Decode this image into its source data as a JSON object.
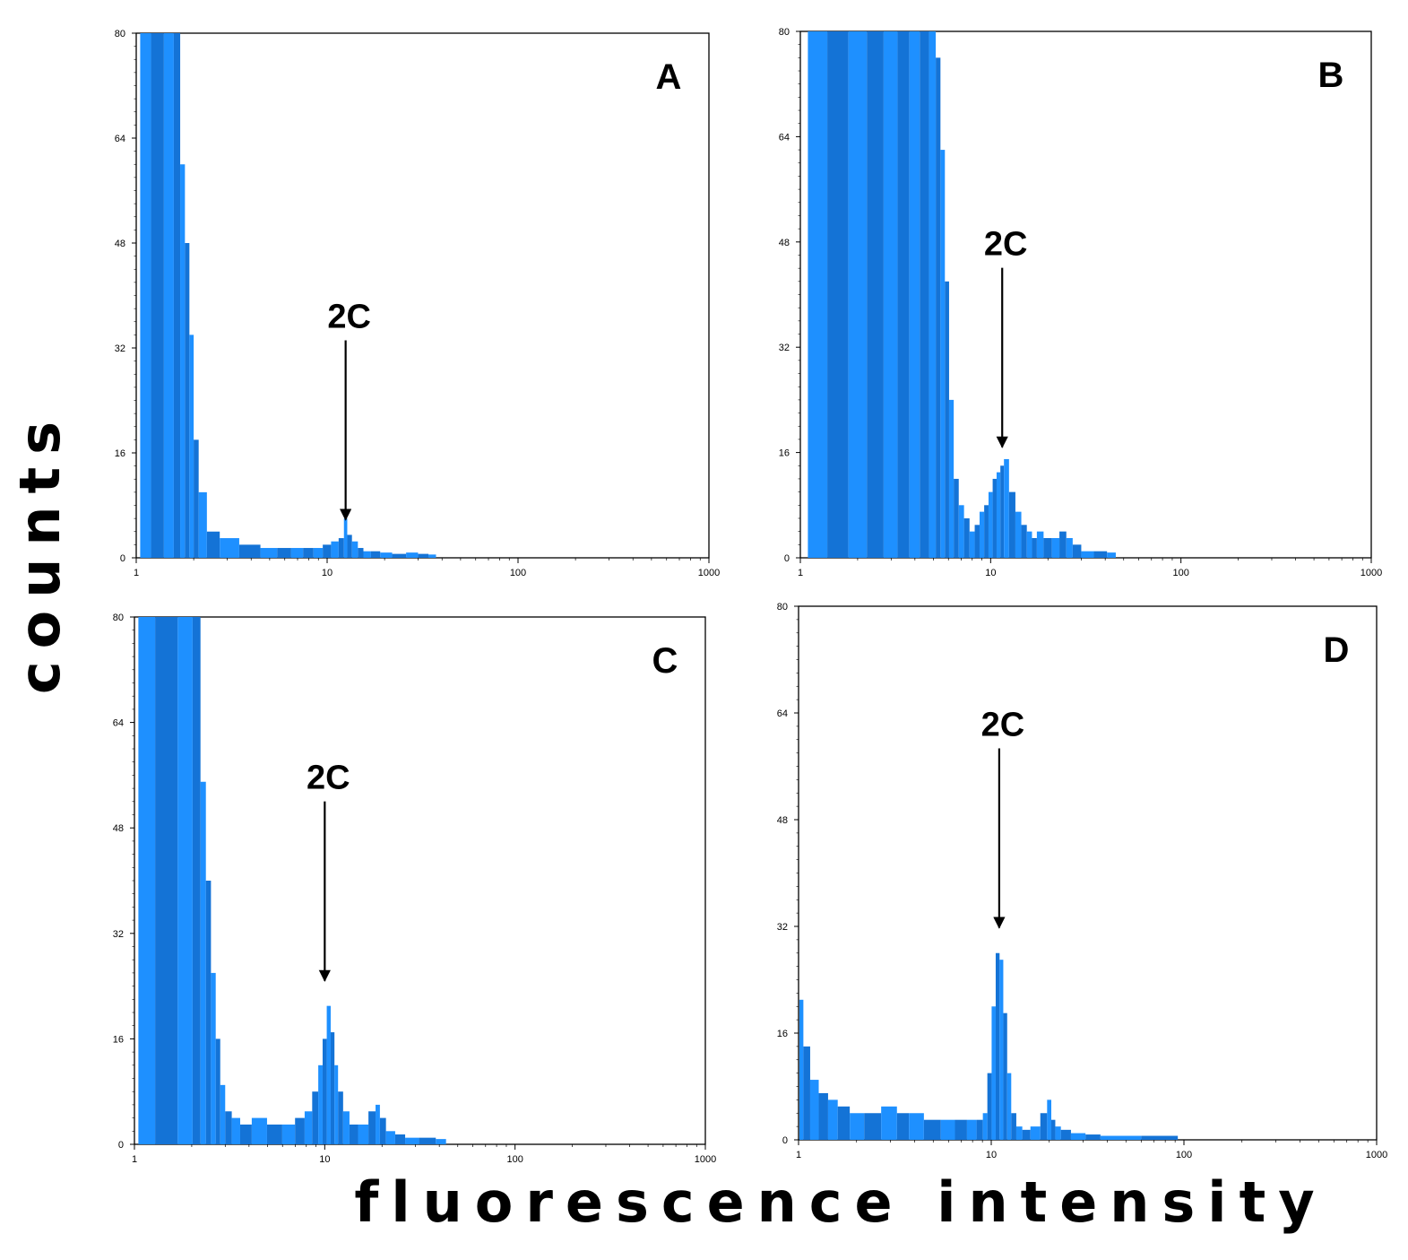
{
  "figure": {
    "ylabel": "counts",
    "xlabel": "fluorescence intensity",
    "bar_color": "#1e90ff",
    "bar_color_dark": "#1473d6"
  },
  "chart_data": [
    {
      "type": "bar",
      "panel_label": "A",
      "x_scale": "log",
      "xlim": [
        1,
        1000
      ],
      "ylim": [
        0,
        80
      ],
      "x_ticks": [
        "1",
        "10",
        "100",
        "1000"
      ],
      "y_ticks": [
        "0",
        "16",
        "32",
        "48",
        "64",
        "80"
      ],
      "annotation": {
        "text": "2C",
        "x": 12.5,
        "y": 5
      },
      "x": [
        1.1,
        1.3,
        1.5,
        1.65,
        1.75,
        1.85,
        1.95,
        2.05,
        2.2,
        2.5,
        3,
        4,
        5,
        6,
        7,
        8,
        9,
        10,
        11,
        12,
        12.5,
        13,
        14,
        15,
        16,
        18,
        20,
        24,
        28,
        32,
        36
      ],
      "values": [
        80,
        80,
        80,
        80,
        60,
        48,
        34,
        18,
        10,
        4,
        3,
        2,
        1.5,
        1.5,
        1.5,
        1.5,
        1.5,
        2,
        2.5,
        3,
        6,
        3.5,
        2.5,
        1.5,
        1,
        1,
        0.8,
        0.6,
        0.8,
        0.6,
        0.5
      ]
    },
    {
      "type": "bar",
      "panel_label": "B",
      "x_scale": "log",
      "xlim": [
        1,
        1000
      ],
      "ylim": [
        0,
        80
      ],
      "x_ticks": [
        "1",
        "10",
        "100",
        "1000"
      ],
      "y_ticks": [
        "0",
        "16",
        "32",
        "48",
        "64",
        "80"
      ],
      "annotation": {
        "text": "2C",
        "x": 11.5,
        "y": 16
      },
      "x": [
        1.2,
        1.6,
        2,
        2.5,
        3,
        3.5,
        4,
        4.5,
        5,
        5.3,
        5.6,
        5.9,
        6.2,
        6.6,
        7,
        7.5,
        8,
        8.5,
        9,
        9.5,
        10,
        10.5,
        11,
        11.5,
        12,
        13,
        14,
        15,
        16,
        17,
        18,
        20,
        22,
        24,
        26,
        28,
        32,
        38,
        44
      ],
      "values": [
        80,
        80,
        80,
        80,
        80,
        80,
        80,
        80,
        80,
        76,
        62,
        42,
        24,
        12,
        8,
        6,
        4,
        5,
        7,
        8,
        10,
        12,
        13,
        14,
        15,
        10,
        7,
        5,
        4,
        3,
        4,
        3,
        3,
        4,
        3,
        2,
        1,
        1,
        0.8
      ]
    },
    {
      "type": "bar",
      "panel_label": "C",
      "x_scale": "log",
      "xlim": [
        1,
        1000
      ],
      "ylim": [
        0,
        80
      ],
      "x_ticks": [
        "1",
        "10",
        "100",
        "1000"
      ],
      "y_ticks": [
        "0",
        "16",
        "32",
        "48",
        "64",
        "80"
      ],
      "annotation": {
        "text": "2C",
        "x": 10,
        "y": 24
      },
      "x": [
        1.1,
        1.5,
        1.9,
        2.15,
        2.3,
        2.45,
        2.6,
        2.75,
        2.9,
        3.1,
        3.4,
        3.8,
        4.5,
        5.5,
        6.5,
        7.5,
        8.2,
        9,
        9.5,
        10,
        10.5,
        11,
        11.5,
        12,
        13,
        14,
        16,
        18,
        19,
        20,
        22,
        25,
        28,
        35,
        42
      ],
      "values": [
        80,
        80,
        80,
        80,
        55,
        40,
        26,
        16,
        9,
        5,
        4,
        3,
        4,
        3,
        3,
        4,
        5,
        8,
        12,
        16,
        21,
        17,
        12,
        8,
        5,
        3,
        3,
        5,
        6,
        4,
        2,
        1.5,
        1,
        1,
        0.8
      ]
    },
    {
      "type": "bar",
      "panel_label": "D",
      "x_scale": "log",
      "xlim": [
        1,
        1000
      ],
      "ylim": [
        0,
        80
      ],
      "x_ticks": [
        "1",
        "10",
        "100",
        "1000"
      ],
      "y_ticks": [
        "0",
        "16",
        "32",
        "48",
        "64",
        "80"
      ],
      "annotation": {
        "text": "2C",
        "x": 11,
        "y": 31
      },
      "x": [
        1.02,
        1.1,
        1.2,
        1.35,
        1.5,
        1.7,
        2,
        2.4,
        3,
        3.5,
        4,
        5,
        6,
        7,
        8,
        8.8,
        9.3,
        9.8,
        10.3,
        10.8,
        11.3,
        11.8,
        12.4,
        13,
        14,
        15,
        17,
        19,
        20,
        21,
        22,
        24,
        28,
        34,
        40,
        90
      ],
      "values": [
        21,
        14,
        9,
        7,
        6,
        5,
        4,
        4,
        5,
        4,
        4,
        3,
        3,
        3,
        3,
        3,
        4,
        10,
        20,
        28,
        27,
        19,
        10,
        4,
        2,
        1.5,
        2,
        4,
        6,
        3,
        2,
        1.5,
        1,
        0.8,
        0.6,
        0.6
      ]
    }
  ]
}
